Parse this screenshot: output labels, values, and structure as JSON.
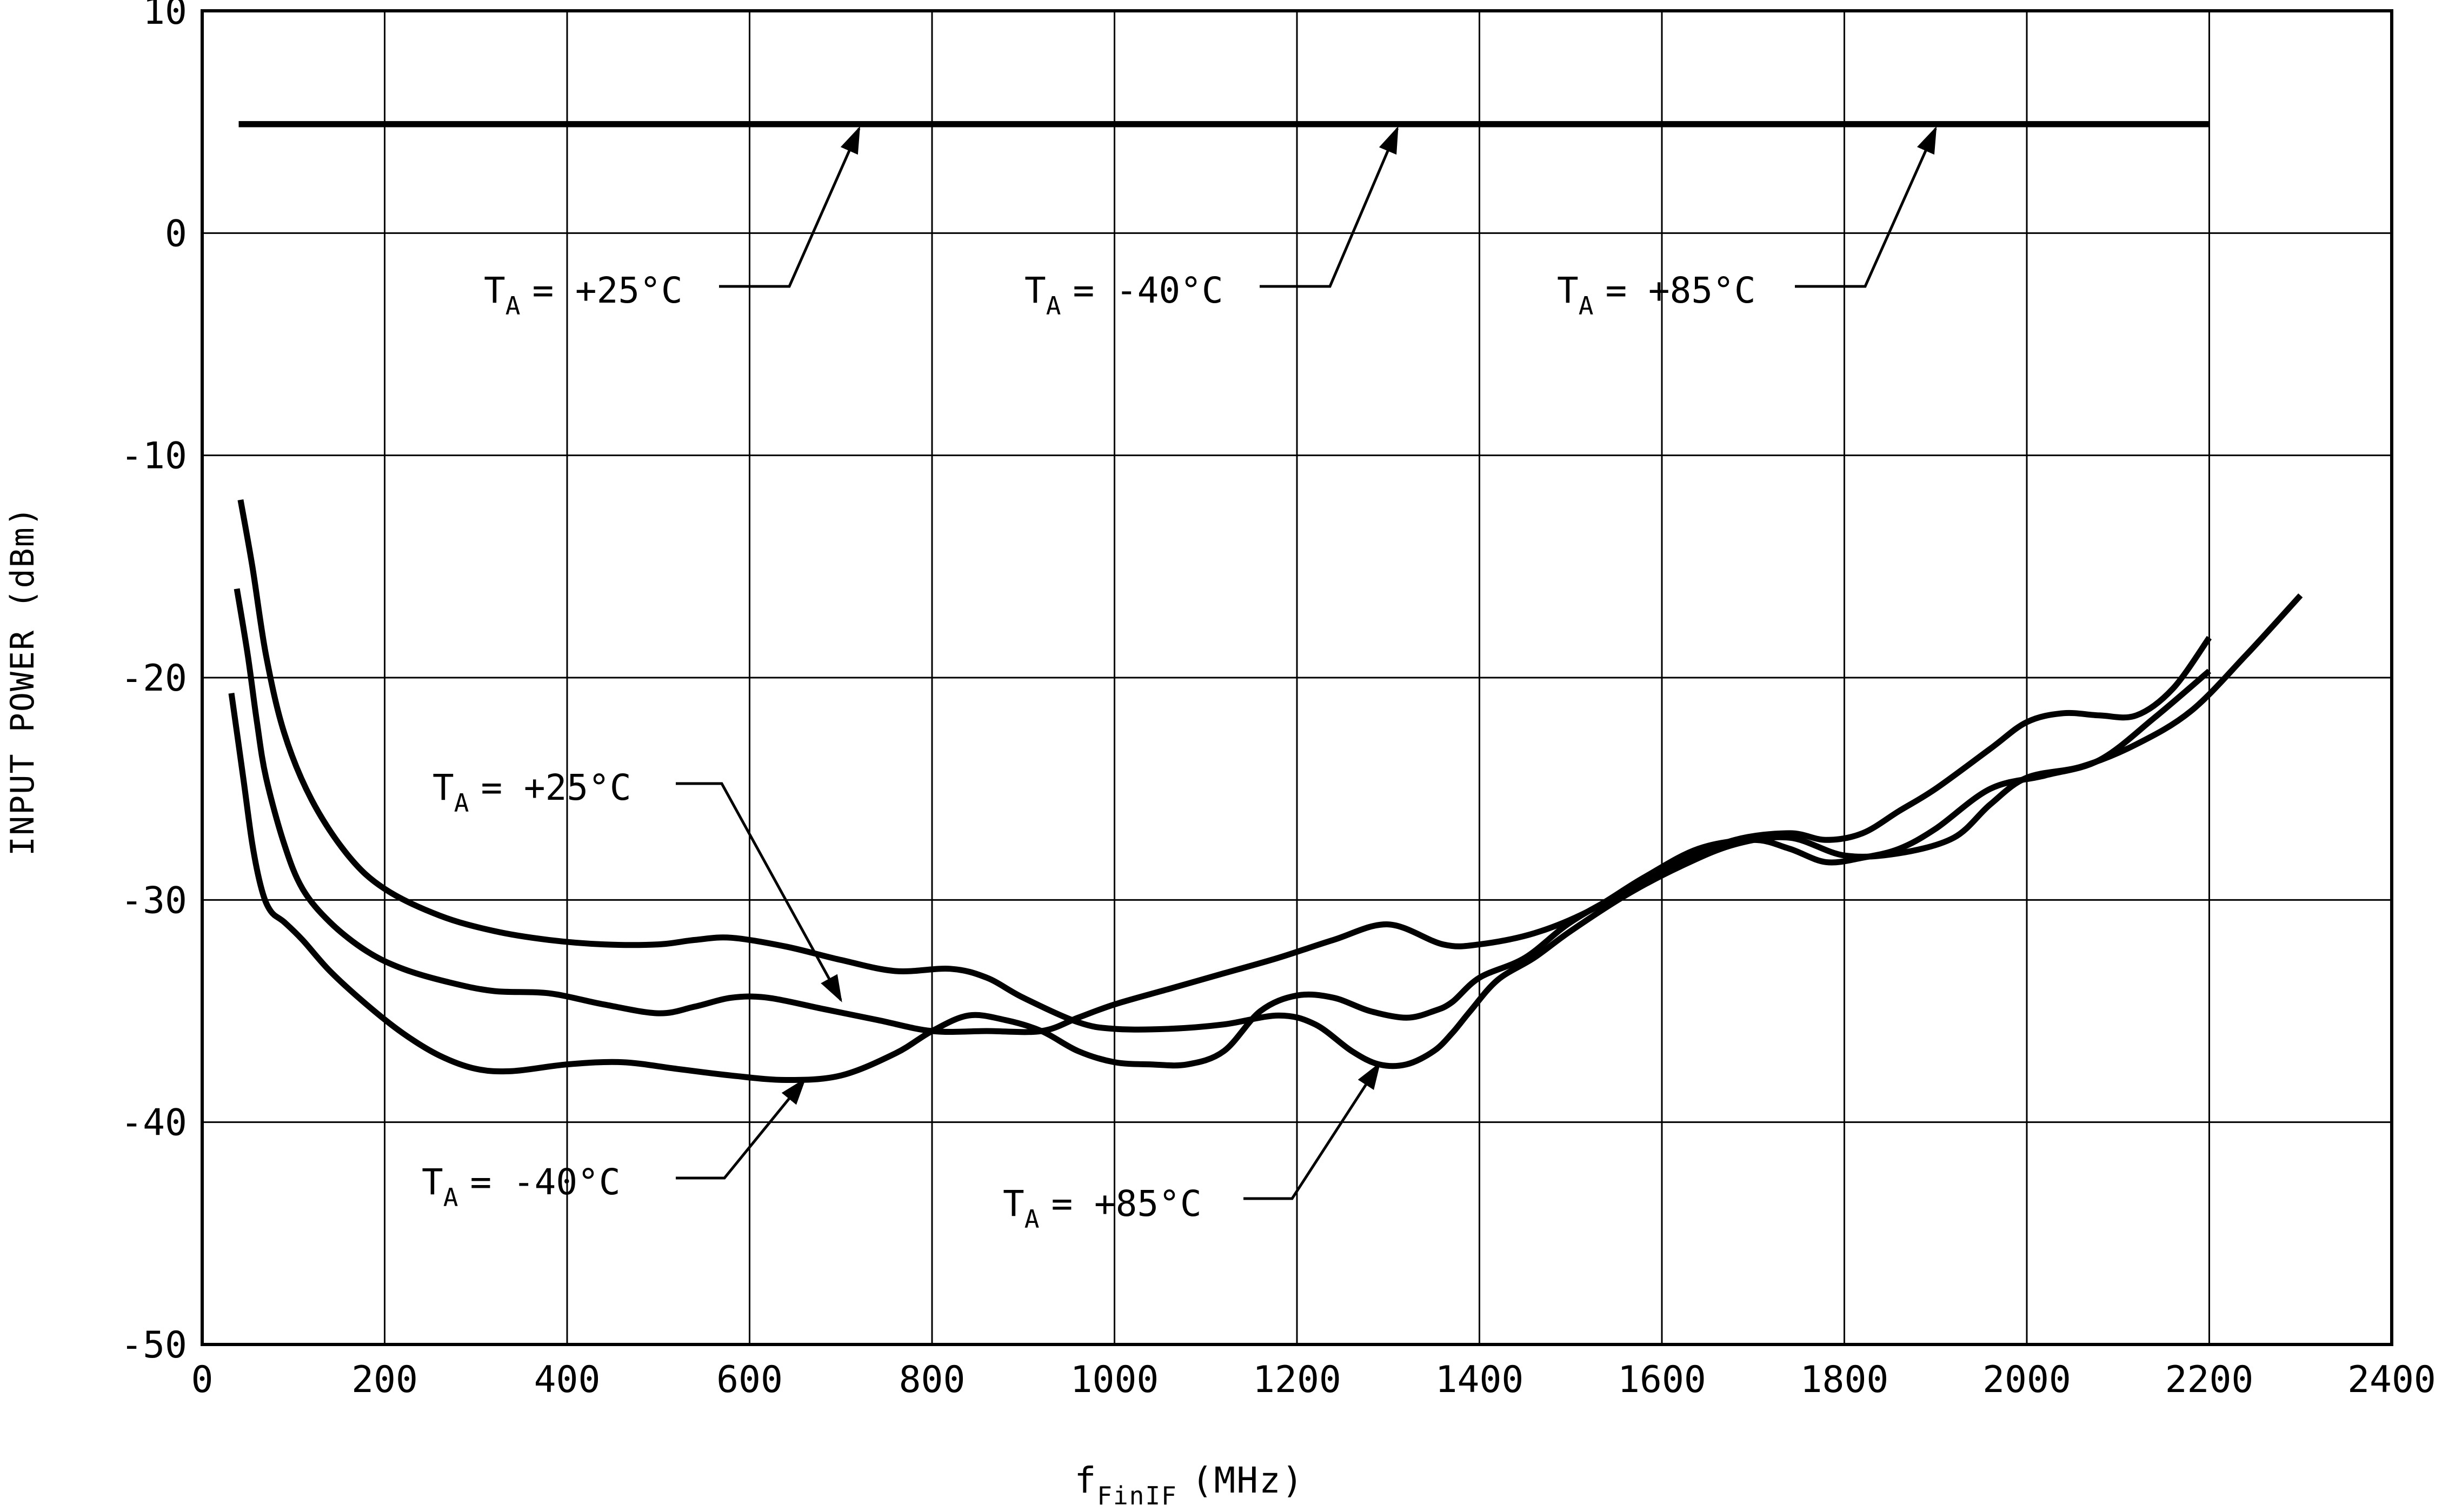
{
  "chart_data": {
    "type": "line",
    "title": "",
    "xlabel": "f",
    "xlabel_sub": "FinIF",
    "xlabel_unit": "(MHz)",
    "ylabel": "INPUT POWER (dBm)",
    "xlim": [
      0,
      2400
    ],
    "ylim": [
      -50,
      10
    ],
    "x_ticks": [
      0,
      200,
      400,
      600,
      800,
      1000,
      1200,
      1400,
      1600,
      1800,
      2000,
      2200,
      2400
    ],
    "y_ticks": [
      10,
      0,
      -10,
      -20,
      -30,
      -40,
      -50
    ],
    "grid": true,
    "legend": "none",
    "series": [
      {
        "name": "T_A = +25°C (max)",
        "x": [
          40,
          2200
        ],
        "y": [
          4.9,
          4.9
        ]
      },
      {
        "name": "T_A = -40°C (max)",
        "x": [
          40,
          2200
        ],
        "y": [
          4.9,
          4.9
        ]
      },
      {
        "name": "T_A = +85°C (max)",
        "x": [
          40,
          2200
        ],
        "y": [
          4.9,
          4.9
        ]
      },
      {
        "name": "T_A = +25°C",
        "x": [
          38,
          50,
          60,
          70,
          90,
          110,
          140,
          180,
          220,
          270,
          320,
          380,
          440,
          500,
          540,
          580,
          620,
          680,
          740,
          800,
          860,
          920,
          960,
          1000,
          1060,
          1120,
          1180,
          1240,
          1300,
          1360,
          1400,
          1460,
          1520,
          1580,
          1640,
          1700,
          1740,
          1780,
          1820,
          1860,
          1900,
          1960,
          2020,
          2080,
          2140,
          2200
        ],
        "y": [
          -16,
          -19,
          -22,
          -24.5,
          -27.5,
          -29.5,
          -31,
          -32.3,
          -33.1,
          -33.7,
          -34.1,
          -34.2,
          -34.7,
          -35.1,
          -34.8,
          -34.4,
          -34.4,
          -34.9,
          -35.4,
          -35.9,
          -35.9,
          -35.9,
          -35.3,
          -34.7,
          -34.0,
          -33.3,
          -32.6,
          -31.8,
          -31.1,
          -32.0,
          -32.0,
          -31.5,
          -30.5,
          -29.0,
          -27.7,
          -27.3,
          -27.7,
          -28.3,
          -28.1,
          -27.7,
          -26.8,
          -25.0,
          -24.4,
          -23.7,
          -21.8,
          -19.7
        ]
      },
      {
        "name": "T_A = -40°C",
        "x": [
          32,
          45,
          55,
          65,
          75,
          90,
          110,
          140,
          180,
          220,
          260,
          300,
          340,
          400,
          460,
          520,
          580,
          640,
          700,
          760,
          800,
          840,
          880,
          920,
          960,
          1000,
          1040,
          1080,
          1120,
          1160,
          1200,
          1240,
          1280,
          1320,
          1350,
          1370,
          1400,
          1450,
          1500,
          1560,
          1620,
          1680,
          1740,
          1780,
          1820,
          1860,
          1900,
          1960,
          2000,
          2040,
          2080,
          2120,
          2160,
          2200
        ],
        "y": [
          -20.7,
          -24.5,
          -27.5,
          -29.5,
          -30.5,
          -31,
          -31.8,
          -33.2,
          -34.7,
          -36.0,
          -37.0,
          -37.6,
          -37.7,
          -37.4,
          -37.3,
          -37.6,
          -37.9,
          -38.1,
          -37.9,
          -36.9,
          -35.9,
          -35.2,
          -35.4,
          -35.9,
          -36.8,
          -37.3,
          -37.4,
          -37.4,
          -36.8,
          -35.0,
          -34.3,
          -34.4,
          -35.0,
          -35.3,
          -35.0,
          -34.6,
          -33.5,
          -32.6,
          -31.0,
          -29.6,
          -28.3,
          -27.3,
          -27.0,
          -27.3,
          -27.0,
          -26.0,
          -25.0,
          -23.2,
          -22.0,
          -21.6,
          -21.7,
          -21.7,
          -20.5,
          -18.2
        ]
      },
      {
        "name": "T_A = +85°C",
        "x": [
          42,
          55,
          70,
          90,
          120,
          160,
          200,
          260,
          320,
          380,
          440,
          500,
          540,
          580,
          640,
          700,
          760,
          820,
          860,
          900,
          960,
          1000,
          1060,
          1120,
          1180,
          1220,
          1260,
          1290,
          1320,
          1350,
          1370,
          1390,
          1420,
          1460,
          1500,
          1560,
          1620,
          1680,
          1740,
          1800,
          1860,
          1920,
          1960,
          2000,
          2060,
          2120,
          2180,
          2240,
          2300
        ],
        "y": [
          -12,
          -15,
          -19,
          -22.5,
          -25.5,
          -28,
          -29.5,
          -30.7,
          -31.4,
          -31.8,
          -32.0,
          -32.0,
          -31.8,
          -31.7,
          -32.1,
          -32.7,
          -33.2,
          -33.1,
          -33.5,
          -34.4,
          -35.5,
          -35.8,
          -35.8,
          -35.6,
          -35.2,
          -35.6,
          -36.8,
          -37.4,
          -37.4,
          -36.8,
          -36.0,
          -35.0,
          -33.6,
          -32.6,
          -31.4,
          -29.8,
          -28.5,
          -27.5,
          -27.2,
          -28.0,
          -27.9,
          -27.2,
          -25.7,
          -24.5,
          -24.0,
          -23.0,
          -21.5,
          -19.0,
          -16.3
        ]
      }
    ],
    "annotations": [
      {
        "sym": "T",
        "sub": "A",
        "text": "= +25°C",
        "target": [
          720,
          4.7
        ]
      },
      {
        "sym": "T",
        "sub": "A",
        "text": "= -40°C",
        "target": [
          1310,
          4.7
        ]
      },
      {
        "sym": "T",
        "sub": "A",
        "text": "= +85°C",
        "target": [
          1900,
          4.7
        ]
      },
      {
        "sym": "T",
        "sub": "A",
        "text": "= +25°C",
        "target": [
          700,
          -34.5
        ]
      },
      {
        "sym": "T",
        "sub": "A",
        "text": "= -40°C",
        "target": [
          660,
          -38.1
        ]
      },
      {
        "sym": "T",
        "sub": "A",
        "text": "= +85°C",
        "target": [
          1290,
          -37.4
        ]
      }
    ]
  }
}
